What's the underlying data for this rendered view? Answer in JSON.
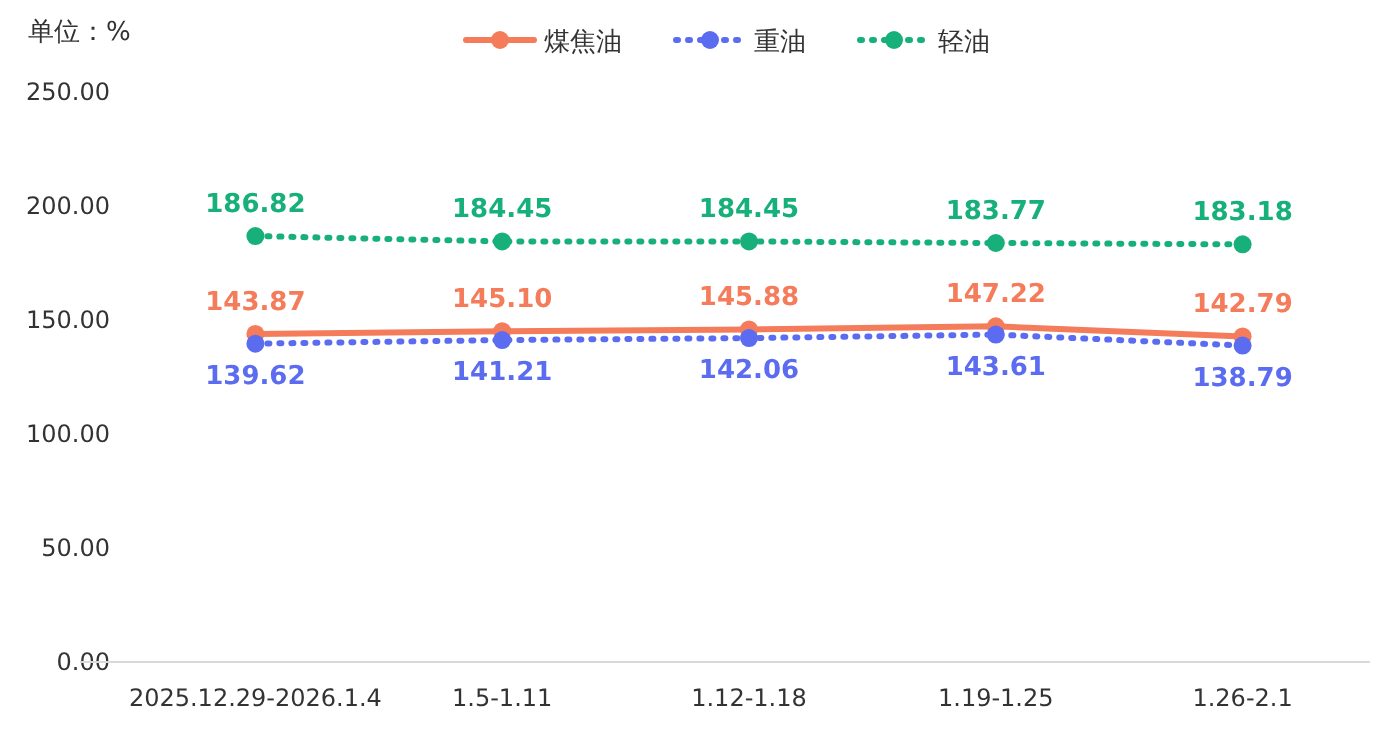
{
  "chart_data": {
    "type": "line",
    "ylabel": "单位：%",
    "categories": [
      "2025.12.29-2026.1.4",
      "1.5-1.11",
      "1.12-1.18",
      "1.19-1.25",
      "1.26-2.1"
    ],
    "ylim": [
      0,
      250
    ],
    "yticks": [
      {
        "value": 0,
        "label": "0.00"
      },
      {
        "value": 50,
        "label": "50.00"
      },
      {
        "value": 100,
        "label": "100.00"
      },
      {
        "value": 150,
        "label": "150.00"
      },
      {
        "value": 200,
        "label": "200.00"
      },
      {
        "value": 250,
        "label": "250.00"
      }
    ],
    "grid": false,
    "legend": "top",
    "marker": "circle",
    "series": [
      {
        "name": "煤焦油",
        "color": "#f47c5b",
        "line_style": "solid",
        "values": [
          143.87,
          145.1,
          145.88,
          147.22,
          142.79
        ],
        "value_labels": [
          "143.87",
          "145.10",
          "145.88",
          "147.22",
          "142.79"
        ]
      },
      {
        "name": "重油",
        "color": "#5b6cf0",
        "line_style": "dotted",
        "values": [
          139.62,
          141.21,
          142.06,
          143.61,
          138.79
        ],
        "value_labels": [
          "139.62",
          "141.21",
          "142.06",
          "143.61",
          "138.79"
        ]
      },
      {
        "name": "轻油",
        "color": "#17b07a",
        "line_style": "dotted",
        "values": [
          186.82,
          184.45,
          184.45,
          183.77,
          183.18
        ],
        "value_labels": [
          "186.82",
          "184.45",
          "184.45",
          "183.77",
          "183.18"
        ]
      }
    ]
  }
}
